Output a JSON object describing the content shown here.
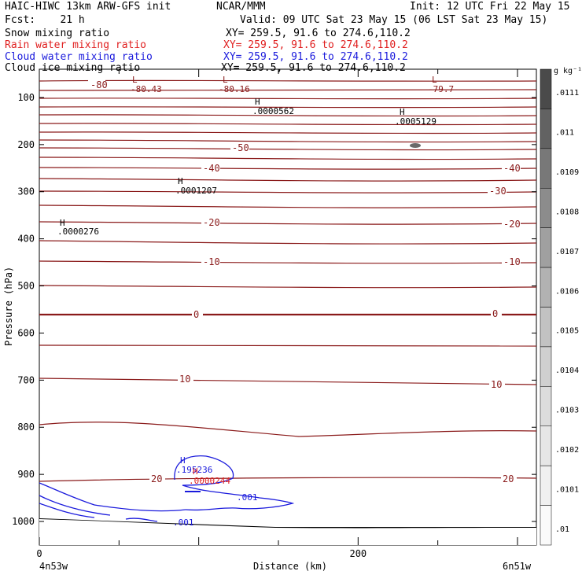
{
  "header": {
    "title": "HAIC-HIWC 13km ARW-GFS init",
    "org": "NCAR/MMM",
    "init": "Init: 12 UTC Fri 22 May 15",
    "fcst": "Fcst:    21 h",
    "valid": "Valid: 09 UTC Sat 23 May 15 (06 LST Sat 23 May 15)",
    "fields": [
      {
        "label": "Snow mixing ratio",
        "xy": "XY= 259.5, 91.6 to 274.6,110.2",
        "color": "#000000"
      },
      {
        "label": "Rain water mixing ratio",
        "xy": "XY= 259.5, 91.6 to 274.6,110.2",
        "color": "#e02020"
      },
      {
        "label": "Cloud water mixing ratio",
        "xy": "XY= 259.5, 91.6 to 274.6,110.2",
        "color": "#1a1adc"
      },
      {
        "label": "Cloud ice mixing ratio",
        "xy": "XY= 259.5, 91.6 to 274.6,110.2",
        "color": "#000000"
      }
    ]
  },
  "chart_data": {
    "type": "contour",
    "xlabel": "Distance (km)",
    "ylabel": "Pressure (hPa)",
    "x_ticks": [
      0,
      200
    ],
    "y_ticks": [
      100,
      200,
      300,
      400,
      500,
      600,
      700,
      800,
      900,
      1000
    ],
    "x_left_label": "4n53w",
    "x_right_label": "6n51w",
    "xlim": [
      0,
      300
    ],
    "ylim": [
      1050,
      40
    ],
    "colorbar": {
      "unit": "g kg⁻¹",
      "ticks": [
        ".0111",
        ".011",
        ".0109",
        ".0108",
        ".0107",
        ".0106",
        ".0105",
        ".0104",
        ".0103",
        ".0102",
        ".0101",
        ".01"
      ]
    },
    "temperature_labels": [
      "-80",
      "-50",
      "-40",
      "-40",
      "-30",
      "-20",
      "-20",
      "-10",
      "-10",
      "0",
      "0",
      "10",
      "10",
      "20",
      "20"
    ],
    "extrema": [
      {
        "type": "L",
        "value": "-80.43"
      },
      {
        "type": "L",
        "value": "-80.16"
      },
      {
        "type": "L",
        "value": "-79.7"
      },
      {
        "type": "H",
        "value": ".0000562"
      },
      {
        "type": "H",
        "value": ".0005129"
      },
      {
        "type": "H",
        "value": ".0001207"
      },
      {
        "type": "H",
        "value": ".0000276"
      },
      {
        "type": "H",
        "value": ".195236"
      },
      {
        "type": "H",
        "value": ".0000244"
      }
    ],
    "cloud_water_labels": [
      ".001",
      ".001"
    ]
  }
}
